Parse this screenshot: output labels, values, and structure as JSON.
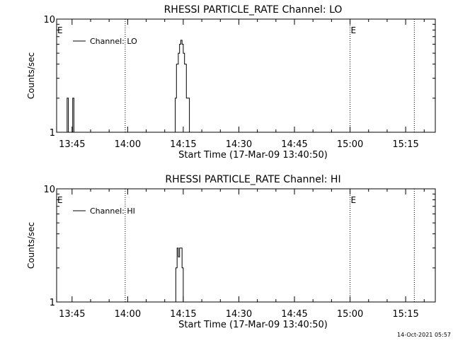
{
  "chart_data": [
    {
      "type": "line",
      "title": "RHESSI PARTICLE_RATE Channel: LO",
      "xlabel": "Start Time (17-Mar-09 13:40:50)",
      "ylabel": "Counts/sec",
      "yscale": "log",
      "ylim": [
        1,
        10
      ],
      "xlim": [
        "13:40:50",
        "15:23:00"
      ],
      "x_tick_labels": [
        "13:45",
        "14:00",
        "14:15",
        "14:30",
        "14:45",
        "15:00",
        "15:15"
      ],
      "y_tick_labels": [
        "1",
        "10"
      ],
      "legend": {
        "position": "top-left",
        "entries": [
          "Channel: LO"
        ]
      },
      "event_lines": [
        "13:59:20",
        "15:00:00",
        "15:17:20"
      ],
      "event_labels": [
        {
          "text": "E",
          "x": "13:40:50"
        },
        {
          "text": "E",
          "x": "15:00:00"
        }
      ],
      "series": [
        {
          "name": "Channel: LO",
          "points": [
            [
              "13:43:40",
              1
            ],
            [
              "13:43:40",
              2
            ],
            [
              "13:44:00",
              2
            ],
            [
              "13:44:00",
              1
            ],
            [
              "13:45:10",
              1
            ],
            [
              "13:45:10",
              2
            ],
            [
              "13:45:30",
              2
            ],
            [
              "13:45:30",
              1
            ],
            [
              "14:12:50",
              1
            ],
            [
              "14:12:50",
              2
            ],
            [
              "14:13:10",
              2
            ],
            [
              "14:13:10",
              4
            ],
            [
              "14:13:40",
              4
            ],
            [
              "14:13:40",
              5
            ],
            [
              "14:14:00",
              5
            ],
            [
              "14:14:00",
              6
            ],
            [
              "14:14:20",
              6
            ],
            [
              "14:14:20",
              6.5
            ],
            [
              "14:14:40",
              6.5
            ],
            [
              "14:14:40",
              6
            ],
            [
              "14:15:00",
              6
            ],
            [
              "14:15:00",
              5
            ],
            [
              "14:15:20",
              5
            ],
            [
              "14:15:20",
              4
            ],
            [
              "14:15:50",
              4
            ],
            [
              "14:15:50",
              2
            ],
            [
              "14:16:40",
              2
            ],
            [
              "14:16:40",
              1
            ]
          ]
        }
      ]
    },
    {
      "type": "line",
      "title": "RHESSI PARTICLE_RATE Channel: HI",
      "xlabel": "Start Time (17-Mar-09 13:40:50)",
      "ylabel": "Counts/sec",
      "yscale": "log",
      "ylim": [
        1,
        10
      ],
      "xlim": [
        "13:40:50",
        "15:23:00"
      ],
      "x_tick_labels": [
        "13:45",
        "14:00",
        "14:15",
        "14:30",
        "14:45",
        "15:00",
        "15:15"
      ],
      "y_tick_labels": [
        "1",
        "10"
      ],
      "legend": {
        "position": "top-left",
        "entries": [
          "Channel: HI"
        ]
      },
      "event_lines": [
        "13:59:20",
        "15:00:00",
        "15:17:20"
      ],
      "event_labels": [
        {
          "text": "E",
          "x": "13:40:50"
        },
        {
          "text": "E",
          "x": "15:00:00"
        }
      ],
      "series": [
        {
          "name": "Channel: HI",
          "points": [
            [
              "14:13:00",
              1
            ],
            [
              "14:13:00",
              2
            ],
            [
              "14:13:20",
              2
            ],
            [
              "14:13:20",
              3
            ],
            [
              "14:13:40",
              3
            ],
            [
              "14:13:40",
              2.5
            ],
            [
              "14:14:00",
              2.5
            ],
            [
              "14:14:00",
              3
            ],
            [
              "14:14:40",
              3
            ],
            [
              "14:14:40",
              2
            ],
            [
              "14:15:00",
              2
            ],
            [
              "14:15:00",
              1
            ]
          ]
        }
      ]
    }
  ],
  "timestamp": "14-Oct-2021 05:57"
}
